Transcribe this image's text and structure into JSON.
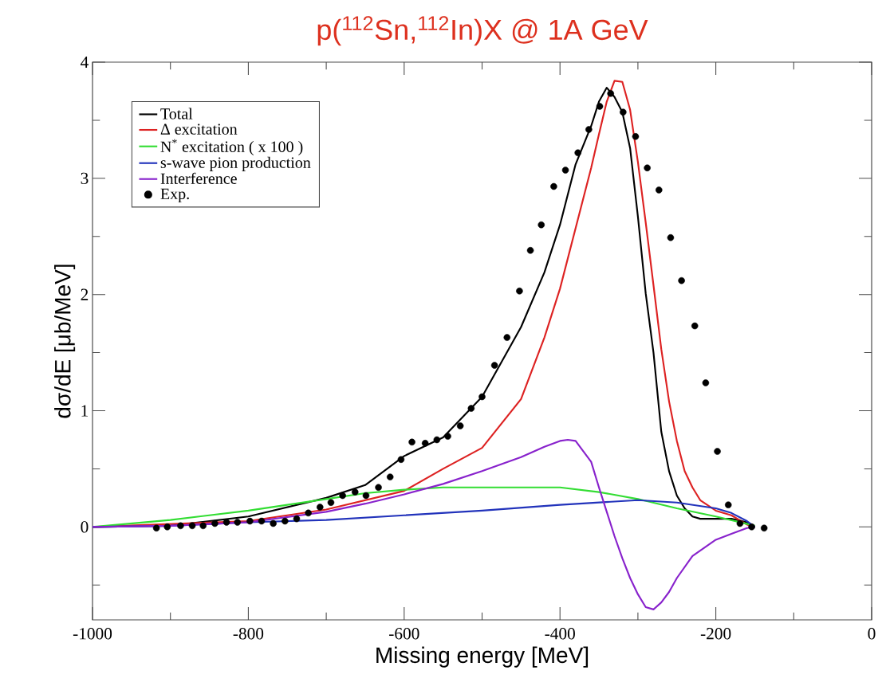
{
  "chart_data": {
    "type": "line",
    "title": "p($^{112}$Sn,$^{112}$In)X @ 1A GeV",
    "xlabel": "Missing energy [MeV]",
    "ylabel": "dσ/dE [μb/MeV]",
    "xlim": [
      -1000,
      0
    ],
    "ylim": [
      -0.8,
      4
    ],
    "xticks": [
      -1000,
      {
        "value": -900,
        "label": null
      },
      -800,
      {
        "value": -700,
        "label": null
      },
      -600,
      {
        "value": -500,
        "label": null
      },
      -400,
      {
        "value": -300,
        "label": null
      },
      -200,
      {
        "value": -100,
        "label": null
      },
      0
    ],
    "yticks": [
      {
        "value": -0.5,
        "label": null
      },
      0,
      {
        "value": 0.5,
        "label": null
      },
      1,
      {
        "value": 1.5,
        "label": null
      },
      2,
      {
        "value": 2.5,
        "label": null
      },
      3,
      {
        "value": 3.5,
        "label": null
      },
      4
    ],
    "grid": false,
    "legend": "top left",
    "marker": "none",
    "line_style": "solid",
    "series": [
      {
        "name": "Total",
        "color": "#000000",
        "x": [
          -1000,
          -900,
          -800,
          -700,
          -650,
          -600,
          -550,
          -500,
          -450,
          -420,
          -400,
          -380,
          -360,
          -350,
          -340,
          -330,
          -320,
          -310,
          -300,
          -290,
          -280,
          -270,
          -260,
          -250,
          -240,
          -230,
          -220,
          -200,
          -180,
          -160,
          -150
        ],
        "values": [
          0,
          0.01,
          0.09,
          0.25,
          0.36,
          0.61,
          0.77,
          1.12,
          1.72,
          2.19,
          2.6,
          3.12,
          3.45,
          3.66,
          3.78,
          3.7,
          3.57,
          3.26,
          2.67,
          2.01,
          1.5,
          0.82,
          0.48,
          0.27,
          0.16,
          0.09,
          0.07,
          0.07,
          0.07,
          0.04,
          0
        ]
      },
      {
        "name": "Δ excitation",
        "color": "#dd2222",
        "x": [
          -1000,
          -800,
          -700,
          -650,
          -600,
          -550,
          -500,
          -450,
          -420,
          -400,
          -380,
          -360,
          -350,
          -340,
          -330,
          -320,
          -310,
          -300,
          -290,
          -280,
          -270,
          -260,
          -250,
          -240,
          -230,
          -220,
          -200,
          -180,
          -160,
          -150
        ],
        "values": [
          0,
          0.05,
          0.15,
          0.23,
          0.31,
          0.5,
          0.68,
          1.1,
          1.63,
          2.05,
          2.57,
          3.09,
          3.38,
          3.66,
          3.84,
          3.83,
          3.59,
          3.14,
          2.62,
          2.08,
          1.53,
          1.08,
          0.74,
          0.48,
          0.34,
          0.23,
          0.14,
          0.1,
          0.02,
          0
        ]
      },
      {
        "name": "N$^{*}$ excitation ( x 100 )",
        "color": "#33dd33",
        "x": [
          -1000,
          -900,
          -800,
          -700,
          -650,
          -600,
          -550,
          -500,
          -450,
          -400,
          -350,
          -300,
          -250,
          -200,
          -150
        ],
        "values": [
          0,
          0.06,
          0.14,
          0.24,
          0.29,
          0.32,
          0.34,
          0.34,
          0.34,
          0.34,
          0.3,
          0.24,
          0.16,
          0.09,
          0.01
        ]
      },
      {
        "name": "s-wave pion production",
        "color": "#2233bb",
        "x": [
          -1000,
          -900,
          -800,
          -700,
          -600,
          -500,
          -400,
          -300,
          -250,
          -200,
          -180,
          -160,
          -150
        ],
        "values": [
          0,
          0.01,
          0.04,
          0.06,
          0.1,
          0.14,
          0.19,
          0.23,
          0.21,
          0.16,
          0.12,
          0.05,
          0
        ]
      },
      {
        "name": "Interference",
        "color": "#8822cc",
        "x": [
          -1000,
          -900,
          -800,
          -700,
          -650,
          -600,
          -550,
          -500,
          -450,
          -420,
          -400,
          -390,
          -380,
          -360,
          -350,
          -340,
          -330,
          -320,
          -310,
          -300,
          -290,
          -280,
          -270,
          -260,
          -250,
          -230,
          -200,
          -180,
          -160,
          -150
        ],
        "values": [
          0,
          0.01,
          0.04,
          0.13,
          0.2,
          0.28,
          0.37,
          0.48,
          0.6,
          0.69,
          0.74,
          0.75,
          0.74,
          0.56,
          0.34,
          0.13,
          -0.08,
          -0.27,
          -0.44,
          -0.58,
          -0.69,
          -0.71,
          -0.65,
          -0.56,
          -0.44,
          -0.25,
          -0.11,
          -0.06,
          -0.01,
          0
        ]
      },
      {
        "name": "Exp.",
        "type": "scatter",
        "marker": "circle",
        "color": "#000000",
        "x": [
          -918,
          -904,
          -887,
          -872,
          -858,
          -843,
          -828,
          -814,
          -798,
          -783,
          -768,
          -753,
          -738,
          -723,
          -708,
          -694,
          -679,
          -663,
          -649,
          -633,
          -618,
          -604,
          -590,
          -573,
          -558,
          -544,
          -528,
          -514,
          -500,
          -484,
          -468,
          -452,
          -438,
          -424,
          -408,
          -393,
          -377,
          -363,
          -349,
          -335,
          -319,
          -303,
          -288,
          -273,
          -258,
          -244,
          -227,
          -213,
          -198,
          -184,
          -169,
          -154,
          -138
        ],
        "values": [
          -0.01,
          0,
          0.01,
          0.01,
          0.01,
          0.03,
          0.04,
          0.04,
          0.05,
          0.05,
          0.03,
          0.05,
          0.07,
          0.12,
          0.17,
          0.21,
          0.27,
          0.3,
          0.27,
          0.34,
          0.43,
          0.58,
          0.73,
          0.72,
          0.75,
          0.78,
          0.87,
          1.02,
          1.12,
          1.39,
          1.63,
          2.03,
          2.38,
          2.6,
          2.93,
          3.07,
          3.22,
          3.42,
          3.62,
          3.73,
          3.57,
          3.36,
          3.09,
          2.9,
          2.49,
          2.12,
          1.73,
          1.24,
          0.65,
          0.19,
          0.03,
          0,
          -0.01
        ]
      }
    ]
  }
}
